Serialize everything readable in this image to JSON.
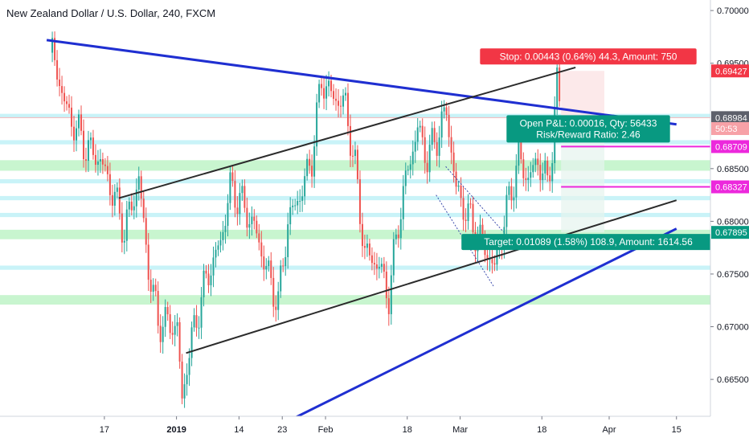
{
  "header": {
    "title": "New Zealand Dollar / U.S. Dollar, 240, FXCM"
  },
  "colors": {
    "bull": "#26a69a",
    "bear": "#ef5350",
    "trend_blue": "#1f2fd1",
    "channel": "#2b2b2b",
    "zone_green": "#c8f5cf",
    "zone_cyan": "#c9f3f8",
    "magenta": "#ec28dc",
    "stop_red": "#f23645",
    "target_green": "#089981"
  },
  "chart_data": {
    "type": "candlestick",
    "title": "New Zealand Dollar / U.S. Dollar, 240, FXCM",
    "ylim": [
      0.6615,
      0.701
    ],
    "y_ticks": [
      "0.66500",
      "0.67000",
      "0.67500",
      "0.68000",
      "0.68500",
      "0.69500",
      "0.70000"
    ],
    "x_ticks": [
      "17",
      "2019",
      "14",
      "23",
      "Feb",
      "18",
      "Mar",
      "18",
      "Apr",
      "15"
    ],
    "x_tick_bold": [
      false,
      true,
      false,
      false,
      false,
      false,
      false,
      false,
      false,
      false
    ],
    "price_tags": [
      {
        "label": "0.69427",
        "value": 0.69427,
        "style": "red"
      },
      {
        "label": "0.68984",
        "value": 0.68984,
        "style": "gray"
      },
      {
        "label": "50:53",
        "value": 0.6888,
        "style": "lightred"
      },
      {
        "label": "0.68709",
        "value": 0.68709,
        "style": "magenta"
      },
      {
        "label": "0.68327",
        "value": 0.68327,
        "style": "magenta"
      },
      {
        "label": "0.67895",
        "value": 0.67895,
        "style": "green"
      }
    ],
    "current_price": 0.68984,
    "position": {
      "stop_label": "Stop: 0.00443 (0.64%) 44.3, Amount: 750",
      "pnl_label": "Open P&L: 0.00016, Qty: 56433",
      "rr_label": "Risk/Reward Ratio: 2.46",
      "target_label": "Target: 0.01089 (1.58%) 108.9, Amount: 1614.56",
      "entry": 0.68984,
      "stop": 0.69427,
      "target": 0.67895
    },
    "horizontal_levels": [
      {
        "value": 0.68709,
        "color": "magenta"
      },
      {
        "value": 0.68327,
        "color": "magenta"
      }
    ],
    "zones": [
      {
        "low": 0.6848,
        "high": 0.6858,
        "color": "green"
      },
      {
        "low": 0.6783,
        "high": 0.6792,
        "color": "green"
      },
      {
        "low": 0.6721,
        "high": 0.673,
        "color": "green"
      },
      {
        "low": 0.6898,
        "high": 0.6902,
        "color": "cyan"
      },
      {
        "low": 0.6873,
        "high": 0.6877,
        "color": "cyan"
      },
      {
        "low": 0.6836,
        "high": 0.684,
        "color": "cyan"
      },
      {
        "low": 0.682,
        "high": 0.6824,
        "color": "cyan"
      },
      {
        "low": 0.6804,
        "high": 0.6808,
        "color": "cyan"
      },
      {
        "low": 0.6754,
        "high": 0.6758,
        "color": "cyan"
      }
    ],
    "series": [
      {
        "date": "2018-12-06",
        "value": 0.696
      },
      {
        "date": "2018-12-09",
        "value": 0.6905
      },
      {
        "date": "2018-12-13",
        "value": 0.687
      },
      {
        "date": "2018-12-16",
        "value": 0.6858
      },
      {
        "date": "2018-12-19",
        "value": 0.6822
      },
      {
        "date": "2018-12-21",
        "value": 0.679
      },
      {
        "date": "2018-12-24",
        "value": 0.684
      },
      {
        "date": "2018-12-26",
        "value": 0.6755
      },
      {
        "date": "2018-12-28",
        "value": 0.6705
      },
      {
        "date": "2019-01-01",
        "value": 0.67
      },
      {
        "date": "2019-01-02",
        "value": 0.6628
      },
      {
        "date": "2019-01-03",
        "value": 0.6665
      },
      {
        "date": "2019-01-05",
        "value": 0.6708
      },
      {
        "date": "2019-01-07",
        "value": 0.6745
      },
      {
        "date": "2019-01-10",
        "value": 0.678
      },
      {
        "date": "2019-01-12",
        "value": 0.6832
      },
      {
        "date": "2019-01-14",
        "value": 0.682
      },
      {
        "date": "2019-01-17",
        "value": 0.6795
      },
      {
        "date": "2019-01-20",
        "value": 0.6748
      },
      {
        "date": "2019-01-22",
        "value": 0.6722
      },
      {
        "date": "2019-01-24",
        "value": 0.68
      },
      {
        "date": "2019-01-27",
        "value": 0.683
      },
      {
        "date": "2019-01-29",
        "value": 0.686
      },
      {
        "date": "2019-01-31",
        "value": 0.6935
      },
      {
        "date": "2019-02-02",
        "value": 0.692
      },
      {
        "date": "2019-02-05",
        "value": 0.691
      },
      {
        "date": "2019-02-07",
        "value": 0.685
      },
      {
        "date": "2019-02-09",
        "value": 0.677
      },
      {
        "date": "2019-02-12",
        "value": 0.6758
      },
      {
        "date": "2019-02-14",
        "value": 0.6728
      },
      {
        "date": "2019-02-16",
        "value": 0.68
      },
      {
        "date": "2019-02-18",
        "value": 0.685
      },
      {
        "date": "2019-02-20",
        "value": 0.6888
      },
      {
        "date": "2019-02-22",
        "value": 0.686
      },
      {
        "date": "2019-02-24",
        "value": 0.688
      },
      {
        "date": "2019-02-26",
        "value": 0.6905
      },
      {
        "date": "2019-02-28",
        "value": 0.683
      },
      {
        "date": "2019-03-02",
        "value": 0.681
      },
      {
        "date": "2019-03-04",
        "value": 0.679
      },
      {
        "date": "2019-03-06",
        "value": 0.6775
      },
      {
        "date": "2019-03-08",
        "value": 0.6755
      },
      {
        "date": "2019-03-10",
        "value": 0.68
      },
      {
        "date": "2019-03-12",
        "value": 0.684
      },
      {
        "date": "2019-03-13",
        "value": 0.686
      },
      {
        "date": "2019-03-15",
        "value": 0.684
      },
      {
        "date": "2019-03-17",
        "value": 0.6858
      },
      {
        "date": "2019-03-19",
        "value": 0.6835
      },
      {
        "date": "2019-03-20",
        "value": 0.687
      },
      {
        "date": "2019-03-21",
        "value": 0.693
      },
      {
        "date": "2019-03-22",
        "value": 0.6898
      }
    ]
  }
}
